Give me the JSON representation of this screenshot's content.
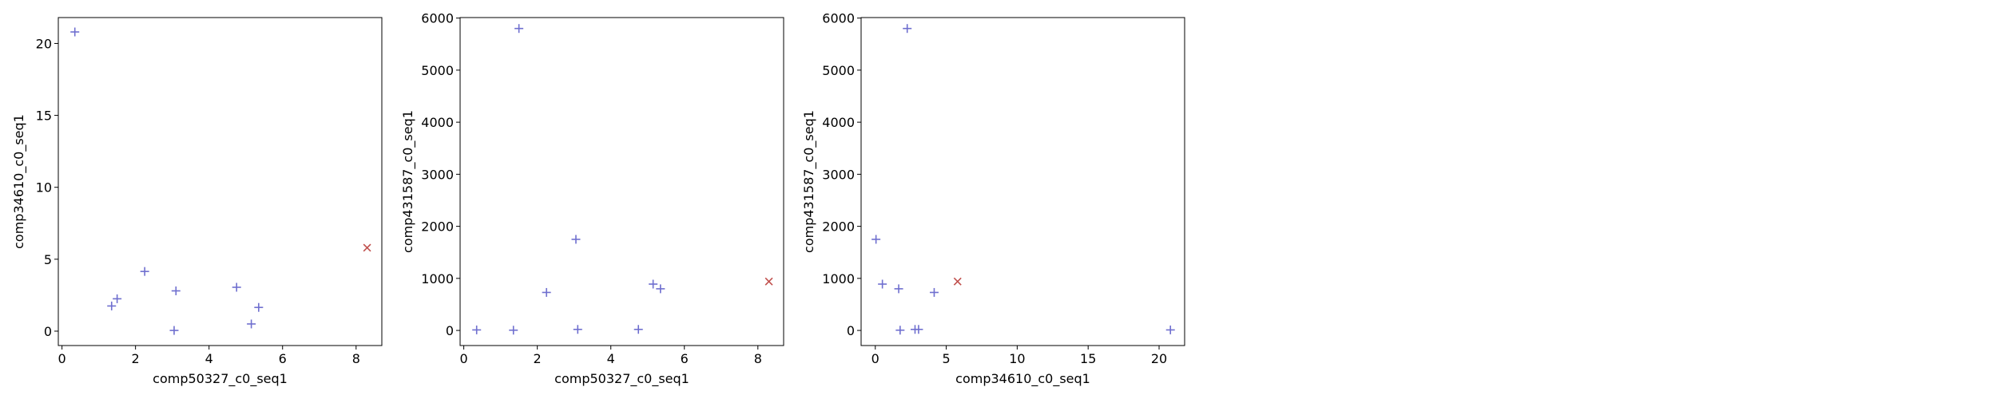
{
  "colors": {
    "series_plus": "#6f6fcf",
    "series_x": "#c0504d",
    "axes": "#000000"
  },
  "chart_data": [
    {
      "type": "scatter",
      "xlabel": "comp50327_c0_seq1",
      "ylabel": "comp34610_c0_seq1",
      "xlim": [
        -0.1,
        8.7
      ],
      "ylim": [
        -1.0,
        21.8
      ],
      "xticks": [
        0,
        2,
        4,
        6,
        8
      ],
      "yticks": [
        0,
        5,
        10,
        15,
        20
      ],
      "grid": false,
      "series": [
        {
          "marker": "+",
          "color": "#6f6fcf",
          "x": [
            0.35,
            1.35,
            1.5,
            2.25,
            3.05,
            3.1,
            4.75,
            5.15,
            5.35
          ],
          "y": [
            20.8,
            1.75,
            2.25,
            4.15,
            0.05,
            2.8,
            3.05,
            0.5,
            1.65
          ]
        },
        {
          "marker": "x",
          "color": "#c0504d",
          "x": [
            8.3
          ],
          "y": [
            5.8
          ]
        }
      ]
    },
    {
      "type": "scatter",
      "xlabel": "comp50327_c0_seq1",
      "ylabel": "comp431587_c0_seq1",
      "xlim": [
        -0.1,
        8.7
      ],
      "ylim": [
        -290,
        6010
      ],
      "xticks": [
        0,
        2,
        4,
        6,
        8
      ],
      "yticks": [
        0,
        1000,
        2000,
        3000,
        4000,
        5000,
        6000
      ],
      "grid": false,
      "series": [
        {
          "marker": "+",
          "color": "#6f6fcf",
          "x": [
            0.35,
            1.35,
            1.5,
            2.25,
            3.05,
            3.1,
            4.75,
            5.15,
            5.35
          ],
          "y": [
            10,
            5,
            5800,
            730,
            1750,
            20,
            20,
            890,
            800
          ]
        },
        {
          "marker": "x",
          "color": "#c0504d",
          "x": [
            8.3
          ],
          "y": [
            940
          ]
        }
      ]
    },
    {
      "type": "scatter",
      "xlabel": "comp34610_c0_seq1",
      "ylabel": "comp431587_c0_seq1",
      "xlim": [
        -1.0,
        21.8
      ],
      "ylim": [
        -290,
        6010
      ],
      "xticks": [
        0,
        5,
        10,
        15,
        20
      ],
      "yticks": [
        0,
        1000,
        2000,
        3000,
        4000,
        5000,
        6000
      ],
      "grid": false,
      "series": [
        {
          "marker": "+",
          "color": "#6f6fcf",
          "x": [
            20.8,
            1.75,
            2.25,
            4.15,
            0.05,
            2.8,
            3.05,
            0.5,
            1.65
          ],
          "y": [
            10,
            5,
            5800,
            730,
            1750,
            20,
            20,
            890,
            800
          ]
        },
        {
          "marker": "x",
          "color": "#c0504d",
          "x": [
            5.8
          ],
          "y": [
            940
          ]
        }
      ]
    }
  ]
}
